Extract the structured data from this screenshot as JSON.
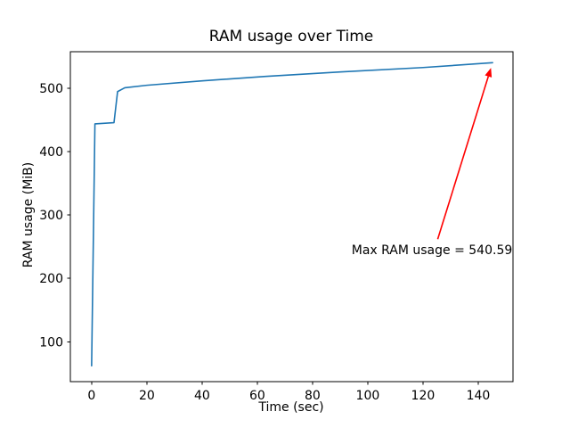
{
  "chart_data": {
    "type": "line",
    "title": "RAM usage over Time",
    "xlabel": "Time (sec)",
    "ylabel": "RAM usage (MiB)",
    "xlim": [
      -7.7,
      152.6
    ],
    "ylim": [
      37,
      558
    ],
    "xticks": [
      0,
      20,
      40,
      60,
      80,
      100,
      120,
      140
    ],
    "yticks": [
      100,
      200,
      300,
      400,
      500
    ],
    "grid": false,
    "legend": null,
    "background_color": "#ffffff",
    "spine_color": "#000000",
    "series": [
      {
        "name": "RAM usage",
        "color": "#1f77b4",
        "x": [
          0,
          1.2,
          8.1,
          9.4,
          12,
          20,
          40,
          63,
          90,
          120,
          145.2
        ],
        "y": [
          62,
          444,
          446,
          495,
          501,
          505,
          512,
          519,
          526,
          533,
          540.59
        ]
      }
    ],
    "annotation": {
      "text": "Max RAM usage = 540.59",
      "color": "#ff0000",
      "xy": [
        145.2,
        540.59
      ],
      "text_xy": [
        123.4,
        262
      ]
    }
  }
}
